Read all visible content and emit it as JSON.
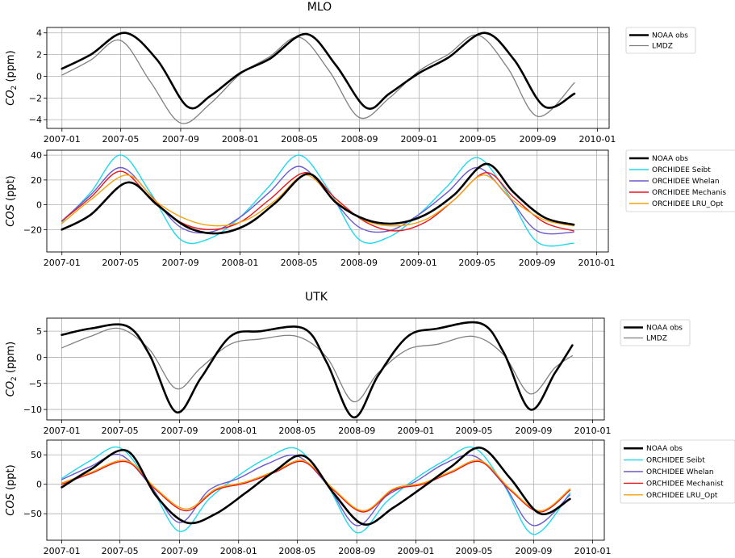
{
  "titles": {
    "mlo": "MLO",
    "utk": "UTK"
  },
  "colors": {
    "noaa": "#000000",
    "lmdz": "#808080",
    "seibt": "#1fd8ee",
    "whelan": "#6a5acd",
    "mechanist": "#e8141b",
    "lru": "#f2a30f"
  },
  "chart_data": [
    {
      "id": "mlo_co2",
      "type": "line",
      "site": "MLO",
      "ylabel": "CO2 (ppm)",
      "ylim": [
        -4.8,
        4.5
      ],
      "yticks": [
        -4,
        -2,
        0,
        2,
        4
      ],
      "xlim": [
        "2006-12-01",
        "2010-01-25"
      ],
      "xticks": [
        "2007-01",
        "2007-05",
        "2007-09",
        "2008-01",
        "2008-05",
        "2008-09",
        "2009-01",
        "2009-05",
        "2009-09",
        "2010-01"
      ],
      "grid": true,
      "legend": "top-right-outside",
      "series": [
        {
          "name": "NOAA obs",
          "color_key": "noaa",
          "width": 2.6,
          "x": [
            "2007-01-01",
            "2007-03-01",
            "2007-05-10",
            "2007-07-15",
            "2007-09-15",
            "2007-11-01",
            "2008-01-01",
            "2008-03-01",
            "2008-05-15",
            "2008-07-15",
            "2008-09-15",
            "2008-11-01",
            "2009-01-01",
            "2009-03-01",
            "2009-05-15",
            "2009-07-15",
            "2009-09-15",
            "2009-11-15"
          ],
          "y": [
            0.7,
            2.0,
            4.0,
            1.5,
            -2.8,
            -1.8,
            0.3,
            1.6,
            3.9,
            1.0,
            -2.9,
            -1.6,
            0.3,
            1.7,
            4.0,
            1.5,
            -2.8,
            -1.6
          ]
        },
        {
          "name": "LMDZ",
          "color_key": "lmdz",
          "width": 1.3,
          "x": [
            "2007-01-01",
            "2007-03-01",
            "2007-05-01",
            "2007-07-01",
            "2007-09-01",
            "2007-11-01",
            "2008-01-01",
            "2008-03-01",
            "2008-05-01",
            "2008-07-01",
            "2008-09-01",
            "2008-11-01",
            "2009-01-01",
            "2009-03-01",
            "2009-05-01",
            "2009-07-01",
            "2009-09-01",
            "2009-11-15"
          ],
          "y": [
            0.1,
            1.5,
            3.3,
            -0.5,
            -4.3,
            -2.5,
            0.2,
            1.8,
            3.6,
            0.5,
            -3.8,
            -2.0,
            0.5,
            2.0,
            3.8,
            0.8,
            -3.7,
            -0.6
          ]
        }
      ]
    },
    {
      "id": "mlo_cos",
      "type": "line",
      "site": "MLO",
      "ylabel": "COS (ppt)",
      "ylim": [
        -38,
        44
      ],
      "yticks": [
        -20,
        0,
        20,
        40
      ],
      "xlim": [
        "2006-12-01",
        "2010-01-25"
      ],
      "xticks": [
        "2007-01",
        "2007-05",
        "2007-09",
        "2008-01",
        "2008-05",
        "2008-09",
        "2009-01",
        "2009-05",
        "2009-09",
        "2010-01"
      ],
      "grid": true,
      "legend": "top-right-outside",
      "series": [
        {
          "name": "NOAA obs",
          "color_key": "noaa",
          "width": 2.6,
          "x": [
            "2007-01-01",
            "2007-03-01",
            "2007-05-15",
            "2007-07-15",
            "2007-09-15",
            "2007-11-15",
            "2008-01-15",
            "2008-03-15",
            "2008-05-20",
            "2008-07-15",
            "2008-09-15",
            "2008-11-15",
            "2009-01-15",
            "2009-03-15",
            "2009-05-20",
            "2009-07-15",
            "2009-09-15",
            "2009-11-15"
          ],
          "y": [
            -20,
            -8,
            18,
            0,
            -18,
            -23,
            -16,
            2,
            25,
            2,
            -12,
            -15,
            -8,
            8,
            33,
            10,
            -10,
            -16
          ]
        },
        {
          "name": "ORCHIDEE Seibt",
          "color_key": "seibt",
          "width": 1.4,
          "x": [
            "2007-01-01",
            "2007-03-01",
            "2007-05-01",
            "2007-07-01",
            "2007-09-01",
            "2007-11-01",
            "2008-01-01",
            "2008-03-01",
            "2008-05-01",
            "2008-07-01",
            "2008-09-01",
            "2008-11-01",
            "2009-01-01",
            "2009-03-01",
            "2009-05-01",
            "2009-07-01",
            "2009-09-01",
            "2009-11-15"
          ],
          "y": [
            -14,
            10,
            40,
            10,
            -28,
            -27,
            -10,
            15,
            40,
            12,
            -28,
            -26,
            -8,
            15,
            38,
            10,
            -30,
            -31
          ]
        },
        {
          "name": "ORCHIDEE Whelan",
          "color_key": "whelan",
          "width": 1.4,
          "x": [
            "2007-01-01",
            "2007-03-01",
            "2007-05-01",
            "2007-07-01",
            "2007-09-01",
            "2007-11-01",
            "2008-01-01",
            "2008-03-01",
            "2008-05-01",
            "2008-07-01",
            "2008-09-01",
            "2008-11-01",
            "2009-01-01",
            "2009-03-01",
            "2009-05-01",
            "2009-07-01",
            "2009-09-01",
            "2009-11-15"
          ],
          "y": [
            -13,
            8,
            30,
            8,
            -18,
            -22,
            -10,
            10,
            31,
            8,
            -18,
            -21,
            -8,
            10,
            30,
            8,
            -21,
            -22
          ]
        },
        {
          "name": "ORCHIDEE Mechanis",
          "color_key": "mechanist",
          "width": 1.4,
          "x": [
            "2007-01-01",
            "2007-03-01",
            "2007-05-01",
            "2007-07-01",
            "2007-09-01",
            "2007-11-01",
            "2008-01-01",
            "2008-03-01",
            "2008-05-15",
            "2008-07-15",
            "2008-09-15",
            "2008-11-15",
            "2009-01-15",
            "2009-03-15",
            "2009-05-20",
            "2009-07-15",
            "2009-09-15",
            "2009-11-15"
          ],
          "y": [
            -13,
            6,
            27,
            6,
            -14,
            -20,
            -14,
            4,
            26,
            5,
            -14,
            -21,
            -14,
            4,
            26,
            6,
            -14,
            -21
          ]
        },
        {
          "name": "ORCHIDEE LRU_Opt",
          "color_key": "lru",
          "width": 1.4,
          "x": [
            "2007-01-01",
            "2007-03-01",
            "2007-05-15",
            "2007-07-15",
            "2007-09-15",
            "2007-11-15",
            "2008-01-15",
            "2008-03-15",
            "2008-05-15",
            "2008-07-15",
            "2008-09-15",
            "2008-11-15",
            "2009-01-15",
            "2009-03-15",
            "2009-05-15",
            "2009-07-15",
            "2009-09-15",
            "2009-11-15"
          ],
          "y": [
            -15,
            4,
            24,
            2,
            -12,
            -17,
            -12,
            4,
            24,
            3,
            -13,
            -17,
            -12,
            4,
            24,
            3,
            -12,
            -17
          ]
        }
      ]
    },
    {
      "id": "utk_co2",
      "type": "line",
      "site": "UTK",
      "ylabel": "CO2 (ppm)",
      "ylim": [
        -12,
        7.5
      ],
      "yticks": [
        -10,
        -5,
        0,
        5
      ],
      "xlim": [
        "2006-12-01",
        "2010-01-25"
      ],
      "xticks": [
        "2007-01",
        "2007-05",
        "2007-09",
        "2008-01",
        "2008-05",
        "2008-09",
        "2009-01",
        "2009-05",
        "2009-09",
        "2010-01"
      ],
      "grid": true,
      "legend": "top-right-outside",
      "series": [
        {
          "name": "NOAA obs",
          "color_key": "noaa",
          "width": 2.6,
          "x": [
            "2007-01-01",
            "2007-03-01",
            "2007-05-15",
            "2007-07-01",
            "2007-08-25",
            "2007-10-15",
            "2007-12-15",
            "2008-02-15",
            "2008-05-15",
            "2008-07-01",
            "2008-08-25",
            "2008-10-15",
            "2008-12-15",
            "2009-02-15",
            "2009-05-15",
            "2009-07-01",
            "2009-08-25",
            "2009-10-15",
            "2009-11-20"
          ],
          "y": [
            4.3,
            5.5,
            6.0,
            0.5,
            -10.5,
            -4.0,
            4.0,
            5.0,
            5.5,
            -1.0,
            -11.5,
            -3.5,
            4.0,
            5.5,
            6.5,
            1.0,
            -10.0,
            -3.0,
            2.3
          ]
        },
        {
          "name": "LMDZ",
          "color_key": "lmdz",
          "width": 1.3,
          "x": [
            "2007-01-01",
            "2007-03-01",
            "2007-05-01",
            "2007-07-01",
            "2007-08-25",
            "2007-10-15",
            "2007-12-15",
            "2008-02-15",
            "2008-05-01",
            "2008-07-01",
            "2008-08-25",
            "2008-10-15",
            "2008-12-15",
            "2009-02-15",
            "2009-05-01",
            "2009-07-01",
            "2009-08-25",
            "2009-10-15",
            "2009-11-20"
          ],
          "y": [
            1.8,
            4.0,
            5.5,
            1.5,
            -6.0,
            -2.0,
            2.5,
            3.5,
            4.0,
            0.0,
            -8.5,
            -3.0,
            1.5,
            2.5,
            4.0,
            0.5,
            -7.0,
            -2.0,
            0.3
          ]
        }
      ]
    },
    {
      "id": "utk_cos",
      "type": "line",
      "site": "UTK",
      "ylabel": "COS (ppt)",
      "ylim": [
        -95,
        75
      ],
      "yticks": [
        -50,
        0,
        50
      ],
      "xlim": [
        "2006-12-01",
        "2010-01-25"
      ],
      "xticks": [
        "2007-01",
        "2007-05",
        "2007-09",
        "2008-01",
        "2008-05",
        "2008-09",
        "2009-01",
        "2009-05",
        "2009-09",
        "2010-01"
      ],
      "grid": true,
      "legend": "top-right-outside",
      "series": [
        {
          "name": "NOAA obs",
          "color_key": "noaa",
          "width": 2.6,
          "x": [
            "2007-01-01",
            "2007-03-01",
            "2007-05-15",
            "2007-07-15",
            "2007-09-15",
            "2007-11-15",
            "2008-01-15",
            "2008-03-15",
            "2008-05-15",
            "2008-07-15",
            "2008-09-15",
            "2008-11-15",
            "2009-01-15",
            "2009-03-15",
            "2009-05-15",
            "2009-07-15",
            "2009-09-15",
            "2009-11-15"
          ],
          "y": [
            -5,
            25,
            57,
            -20,
            -65,
            -50,
            -15,
            22,
            48,
            -15,
            -68,
            -40,
            -5,
            30,
            62,
            10,
            -50,
            -25
          ]
        },
        {
          "name": "ORCHIDEE Seibt",
          "color_key": "seibt",
          "width": 1.4,
          "x": [
            "2007-01-01",
            "2007-03-01",
            "2007-05-01",
            "2007-07-01",
            "2007-09-01",
            "2007-11-01",
            "2008-01-01",
            "2008-03-01",
            "2008-05-01",
            "2008-07-01",
            "2008-09-01",
            "2008-11-01",
            "2009-01-01",
            "2009-03-01",
            "2009-05-01",
            "2009-07-01",
            "2009-09-01",
            "2009-11-15"
          ],
          "y": [
            10,
            40,
            62,
            0,
            -80,
            -25,
            15,
            45,
            60,
            0,
            -82,
            -30,
            10,
            40,
            62,
            0,
            -85,
            -15
          ]
        },
        {
          "name": "ORCHIDEE Whelan",
          "color_key": "whelan",
          "width": 1.4,
          "x": [
            "2007-01-01",
            "2007-03-01",
            "2007-05-01",
            "2007-07-01",
            "2007-09-01",
            "2007-11-01",
            "2008-01-01",
            "2008-03-01",
            "2008-05-01",
            "2008-07-01",
            "2008-09-01",
            "2008-11-01",
            "2009-01-01",
            "2009-03-01",
            "2009-05-01",
            "2009-07-01",
            "2009-09-01",
            "2009-11-15"
          ],
          "y": [
            8,
            30,
            50,
            0,
            -65,
            -10,
            10,
            35,
            48,
            0,
            -70,
            -20,
            5,
            35,
            48,
            0,
            -70,
            -18
          ]
        },
        {
          "name": "ORCHIDEE Mechanist",
          "color_key": "mechanist",
          "width": 1.4,
          "x": [
            "2007-01-01",
            "2007-03-01",
            "2007-05-15",
            "2007-07-15",
            "2007-09-15",
            "2007-11-15",
            "2008-01-15",
            "2008-03-15",
            "2008-05-15",
            "2008-07-15",
            "2008-09-15",
            "2008-11-15",
            "2009-01-15",
            "2009-03-15",
            "2009-05-15",
            "2009-07-15",
            "2009-09-15",
            "2009-11-15"
          ],
          "y": [
            0,
            18,
            38,
            -10,
            -45,
            -10,
            2,
            20,
            38,
            -10,
            -47,
            -10,
            0,
            20,
            38,
            -10,
            -47,
            -10
          ]
        },
        {
          "name": "ORCHIDEE LRU_Opt",
          "color_key": "lru",
          "width": 1.4,
          "x": [
            "2007-01-01",
            "2007-03-01",
            "2007-05-15",
            "2007-07-15",
            "2007-09-15",
            "2007-11-15",
            "2008-01-15",
            "2008-03-15",
            "2008-05-15",
            "2008-07-15",
            "2008-09-15",
            "2008-11-15",
            "2009-01-15",
            "2009-03-15",
            "2009-05-15",
            "2009-07-15",
            "2009-09-15",
            "2009-11-15"
          ],
          "y": [
            2,
            20,
            40,
            -8,
            -42,
            -8,
            4,
            22,
            40,
            -8,
            -45,
            -8,
            2,
            22,
            40,
            -8,
            -45,
            -8
          ]
        }
      ]
    }
  ]
}
